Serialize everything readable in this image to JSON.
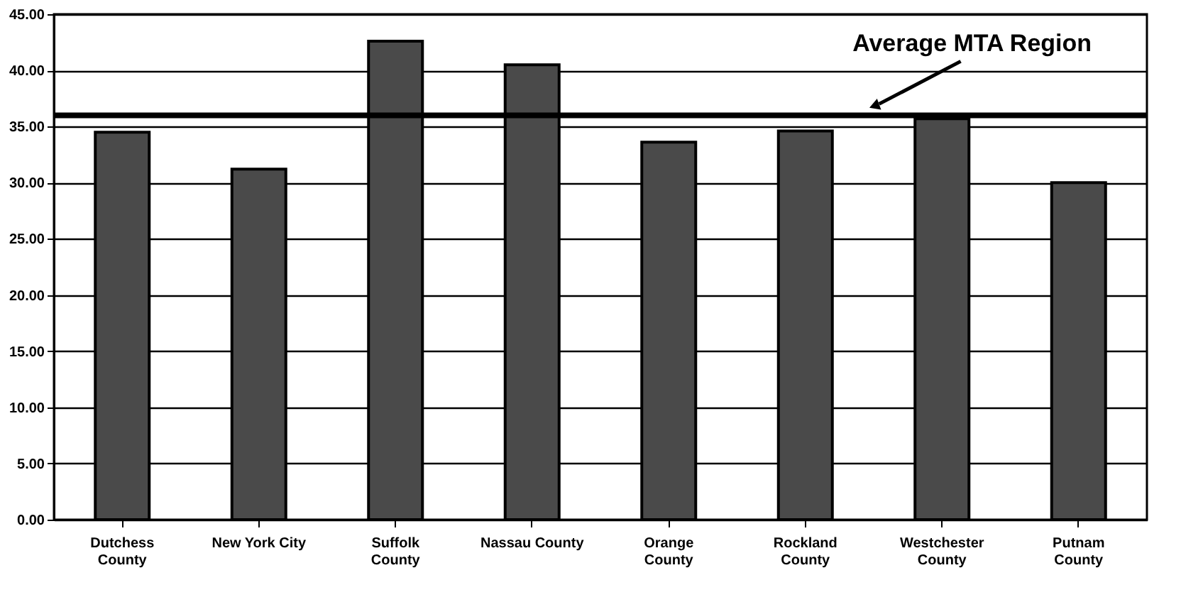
{
  "chart_data": {
    "type": "bar",
    "categories": [
      "Dutchess\nCounty",
      "New York City",
      "Suffolk\nCounty",
      "Nassau County",
      "Orange\nCounty",
      "Rockland\nCounty",
      "Westchester\nCounty",
      "Putnam\nCounty"
    ],
    "values": [
      34.5,
      31.2,
      42.6,
      40.5,
      33.6,
      34.6,
      35.7,
      30.0
    ],
    "color": "#4a4a4a",
    "ylim": [
      0,
      45
    ],
    "yticks": [
      {
        "value": 0,
        "label": "0.00"
      },
      {
        "value": 5,
        "label": "5.00"
      },
      {
        "value": 10,
        "label": "10.00"
      },
      {
        "value": 15,
        "label": "15.00"
      },
      {
        "value": 20,
        "label": "20.00"
      },
      {
        "value": 25,
        "label": "25.00"
      },
      {
        "value": 30,
        "label": "30.00"
      },
      {
        "value": 35,
        "label": "35.00"
      },
      {
        "value": 40,
        "label": "40.00"
      },
      {
        "value": 45,
        "label": "45.00"
      }
    ],
    "grid": "y",
    "ref_lines": [
      {
        "axis": "y",
        "value": 36.0,
        "label": "Average MTA Region",
        "color": "#000000"
      }
    ]
  }
}
